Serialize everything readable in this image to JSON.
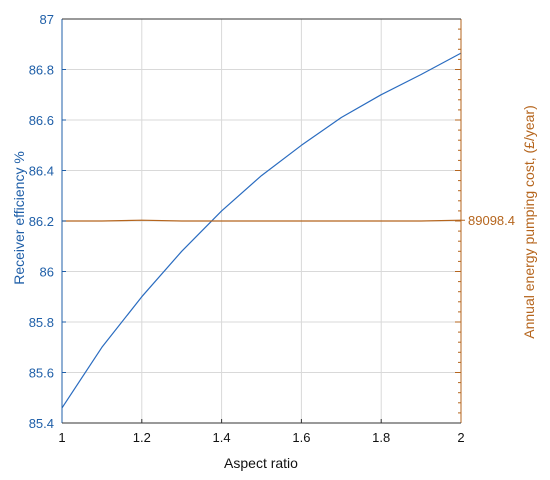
{
  "chart_data": {
    "type": "line",
    "xlabel": "Aspect ratio",
    "ylabel_left": "Receiver efficiency %",
    "ylabel_right": "Annual energy pumping cost, (£/year)",
    "xlim": [
      1,
      2
    ],
    "ylim_left": [
      85.4,
      87
    ],
    "x_ticks": [
      "1",
      "1.2",
      "1.4",
      "1.6",
      "1.8",
      "2"
    ],
    "y_ticks_left": [
      "85.4",
      "85.6",
      "85.8",
      "86",
      "86.2",
      "86.4",
      "86.6",
      "86.8",
      "87"
    ],
    "right_axis_annotation": "89098.4",
    "grid": true,
    "colors": {
      "left_axis": "#1f5fa8",
      "right_axis": "#b5651d",
      "series_efficiency": "#2a6cc0",
      "series_cost": "#b5651d",
      "grid": "#d9d9d9"
    },
    "series": [
      {
        "axis": "left",
        "x": [
          1.0,
          1.1,
          1.2,
          1.3,
          1.4,
          1.5,
          1.6,
          1.7,
          1.8,
          1.9,
          2.0
        ],
        "values": [
          85.46,
          85.7,
          85.9,
          86.08,
          86.24,
          86.38,
          86.5,
          86.61,
          86.7,
          86.78,
          86.865
        ]
      },
      {
        "axis": "left",
        "x": [
          1.0,
          1.1,
          1.2,
          1.3,
          1.4,
          1.5,
          1.6,
          1.7,
          1.8,
          1.9,
          2.0
        ],
        "values": [
          86.2,
          86.2,
          86.203,
          86.2,
          86.2,
          86.2,
          86.2,
          86.2,
          86.2,
          86.2,
          86.203
        ]
      }
    ]
  }
}
